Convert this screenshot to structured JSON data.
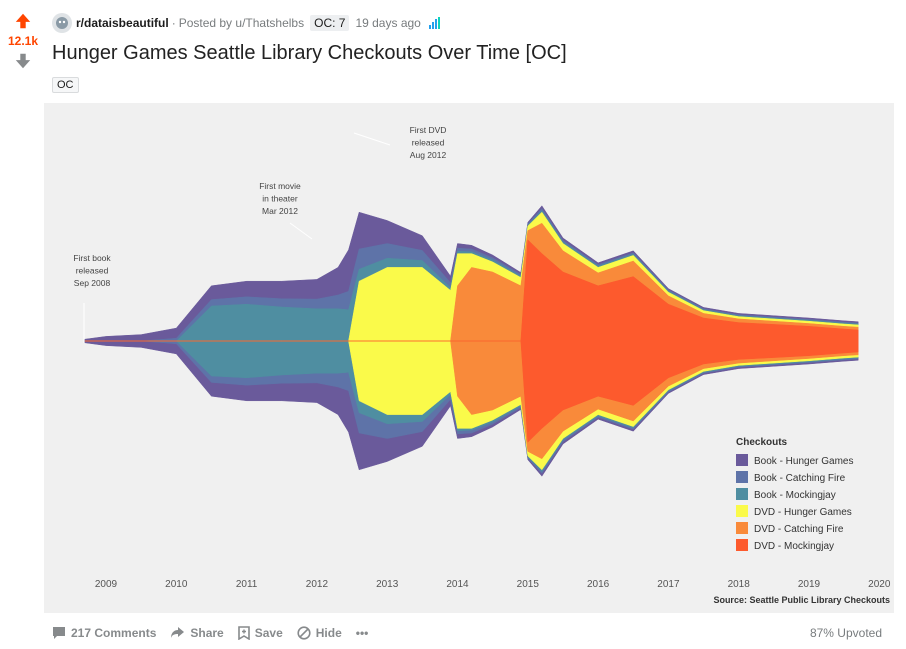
{
  "post": {
    "score": "12.1k",
    "subreddit": "r/dataisbeautiful",
    "posted_by": "Posted by u/Thatshelbs",
    "flair": "OC: 7",
    "age": "19 days ago",
    "title": "Hunger Games Seattle Library Checkouts Over Time [OC]",
    "tag": "OC"
  },
  "actions": {
    "comments": "217 Comments",
    "share": "Share",
    "save": "Save",
    "hide": "Hide",
    "more": "•••",
    "upvoted": "87% Upvoted"
  },
  "colors": {
    "upvote": "#ff4500",
    "link_meta": "#787c7e"
  },
  "chart_data": {
    "type": "area",
    "subtype": "streamgraph",
    "title": "",
    "xlabel": "",
    "ylabel": "",
    "x_ticks": [
      "2009",
      "2010",
      "2011",
      "2012",
      "2013",
      "2014",
      "2015",
      "2016",
      "2017",
      "2018",
      "2019",
      "2020"
    ],
    "grid": false,
    "legend_title": "Checkouts",
    "legend_position": "right-bottom",
    "source": "Source: Seattle Public Library Checkouts",
    "annotations": [
      {
        "id": "book",
        "lines": [
          "First book",
          "released",
          "Sep 2008"
        ]
      },
      {
        "id": "movie",
        "lines": [
          "First movie",
          "in theater",
          "Mar 2012"
        ]
      },
      {
        "id": "dvd",
        "lines": [
          "First DVD",
          "released",
          "Aug 2012"
        ]
      }
    ],
    "x": [
      2008.7,
      2009.0,
      2009.5,
      2010.0,
      2010.5,
      2011.0,
      2011.5,
      2012.0,
      2012.3,
      2012.45,
      2012.6,
      2013.0,
      2013.5,
      2013.9,
      2014.0,
      2014.2,
      2014.5,
      2014.9,
      2015.0,
      2015.2,
      2015.5,
      2016.0,
      2016.5,
      2017.0,
      2017.5,
      2018.0,
      2018.5,
      2019.0,
      2019.5,
      2019.7
    ],
    "series": [
      {
        "name": "Book - Hunger Games",
        "color": "#6a5a9b",
        "values": [
          4,
          10,
          14,
          22,
          30,
          34,
          38,
          43,
          60,
          90,
          80,
          50,
          32,
          14,
          10,
          8,
          6,
          4,
          3,
          6,
          5,
          4,
          4,
          3,
          3,
          3,
          3,
          3,
          3,
          3
        ]
      },
      {
        "name": "Book - Catching Fire",
        "color": "#5e73a8",
        "values": [
          0,
          0,
          0,
          6,
          14,
          16,
          18,
          21,
          30,
          40,
          44,
          32,
          22,
          11,
          7,
          6,
          5,
          4,
          3,
          4,
          4,
          3,
          3,
          3,
          2,
          2,
          2,
          2,
          2,
          2
        ]
      },
      {
        "name": "Book - Mockingjay",
        "color": "#4f8ea1",
        "values": [
          0,
          0,
          0,
          0,
          76,
          80,
          74,
          70,
          70,
          68,
          26,
          20,
          15,
          6,
          5,
          4,
          4,
          3,
          2,
          4,
          3,
          3,
          3,
          2,
          2,
          2,
          2,
          2,
          2,
          2
        ]
      },
      {
        "name": "DVD - Hunger Games",
        "color": "#fafa4a",
        "values": [
          0,
          0,
          0,
          0,
          0,
          0,
          0,
          0,
          0,
          0,
          130,
          160,
          160,
          110,
          70,
          30,
          22,
          18,
          10,
          24,
          16,
          12,
          12,
          8,
          6,
          5,
          5,
          5,
          5,
          5
        ]
      },
      {
        "name": "DVD - Catching Fire",
        "color": "#f98a3a",
        "values": [
          0,
          0,
          0,
          0,
          0,
          0,
          0,
          0,
          0,
          0,
          0,
          0,
          0,
          0,
          120,
          160,
          150,
          120,
          20,
          66,
          46,
          28,
          34,
          18,
          10,
          8,
          7,
          6,
          6,
          6
        ]
      },
      {
        "name": "DVD - Mockingjay",
        "color": "#fd5a2d",
        "values": [
          0,
          0,
          0,
          0,
          0,
          0,
          0,
          0,
          0,
          0,
          0,
          0,
          0,
          0,
          0,
          0,
          0,
          0,
          220,
          190,
          150,
          120,
          140,
          80,
          50,
          40,
          36,
          32,
          26,
          24
        ]
      }
    ]
  }
}
